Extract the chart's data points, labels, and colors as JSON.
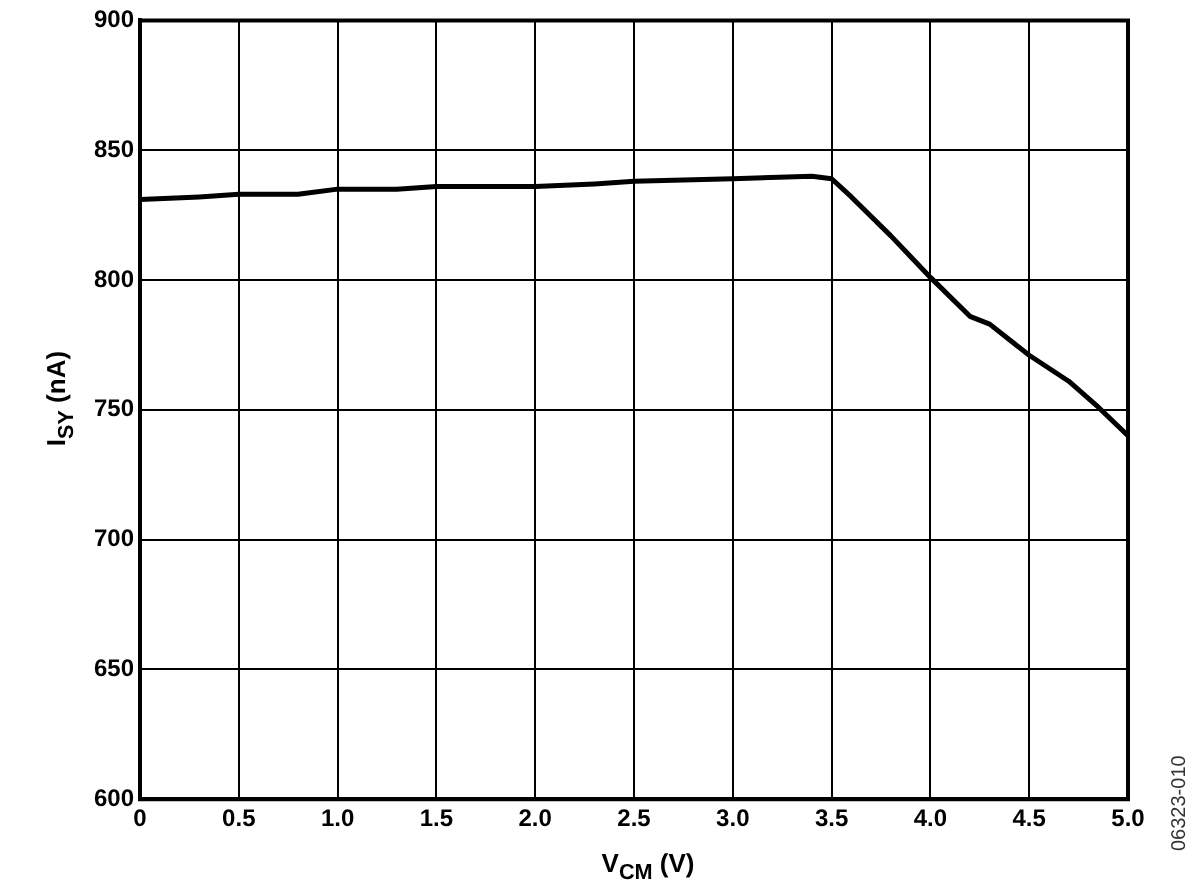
{
  "chart_data": {
    "type": "line",
    "xlabel": "V$_{CM}$ (V)",
    "ylabel": "I$_{SY}$ (nA)",
    "x": [
      0,
      0.3,
      0.5,
      0.8,
      1.0,
      1.3,
      1.5,
      2.0,
      2.3,
      2.5,
      3.0,
      3.4,
      3.5,
      3.6,
      3.8,
      4.0,
      4.2,
      4.3,
      4.5,
      4.7,
      4.85,
      5.0
    ],
    "series": [
      {
        "color": "#000000",
        "values": [
          831,
          832,
          833,
          833,
          835,
          835,
          836,
          836,
          837,
          838,
          839,
          840,
          839,
          832,
          817,
          801,
          786,
          783,
          771,
          761,
          751,
          740
        ]
      }
    ],
    "xlim": [
      0,
      5
    ],
    "xticks": [
      0,
      0.5,
      {
        "value": 1,
        "label": "1.0"
      },
      {
        "value": 1.5,
        "label": "1.5"
      },
      {
        "value": 2,
        "label": "2.0"
      },
      {
        "value": 2.5,
        "label": "2.5"
      },
      {
        "value": 3,
        "label": "3.0"
      },
      {
        "value": 3.5,
        "label": "3.5"
      },
      {
        "value": 4,
        "label": "4.0"
      },
      {
        "value": 4.5,
        "label": "4.5"
      },
      {
        "value": 5,
        "label": "5.0"
      }
    ],
    "ylim": [
      600,
      900
    ],
    "yticks": [
      600,
      650,
      700,
      750,
      800,
      850,
      900
    ],
    "grid": true,
    "legend": false,
    "marker": "none",
    "line_style": "solid",
    "annotations": [
      "06323-010"
    ]
  }
}
